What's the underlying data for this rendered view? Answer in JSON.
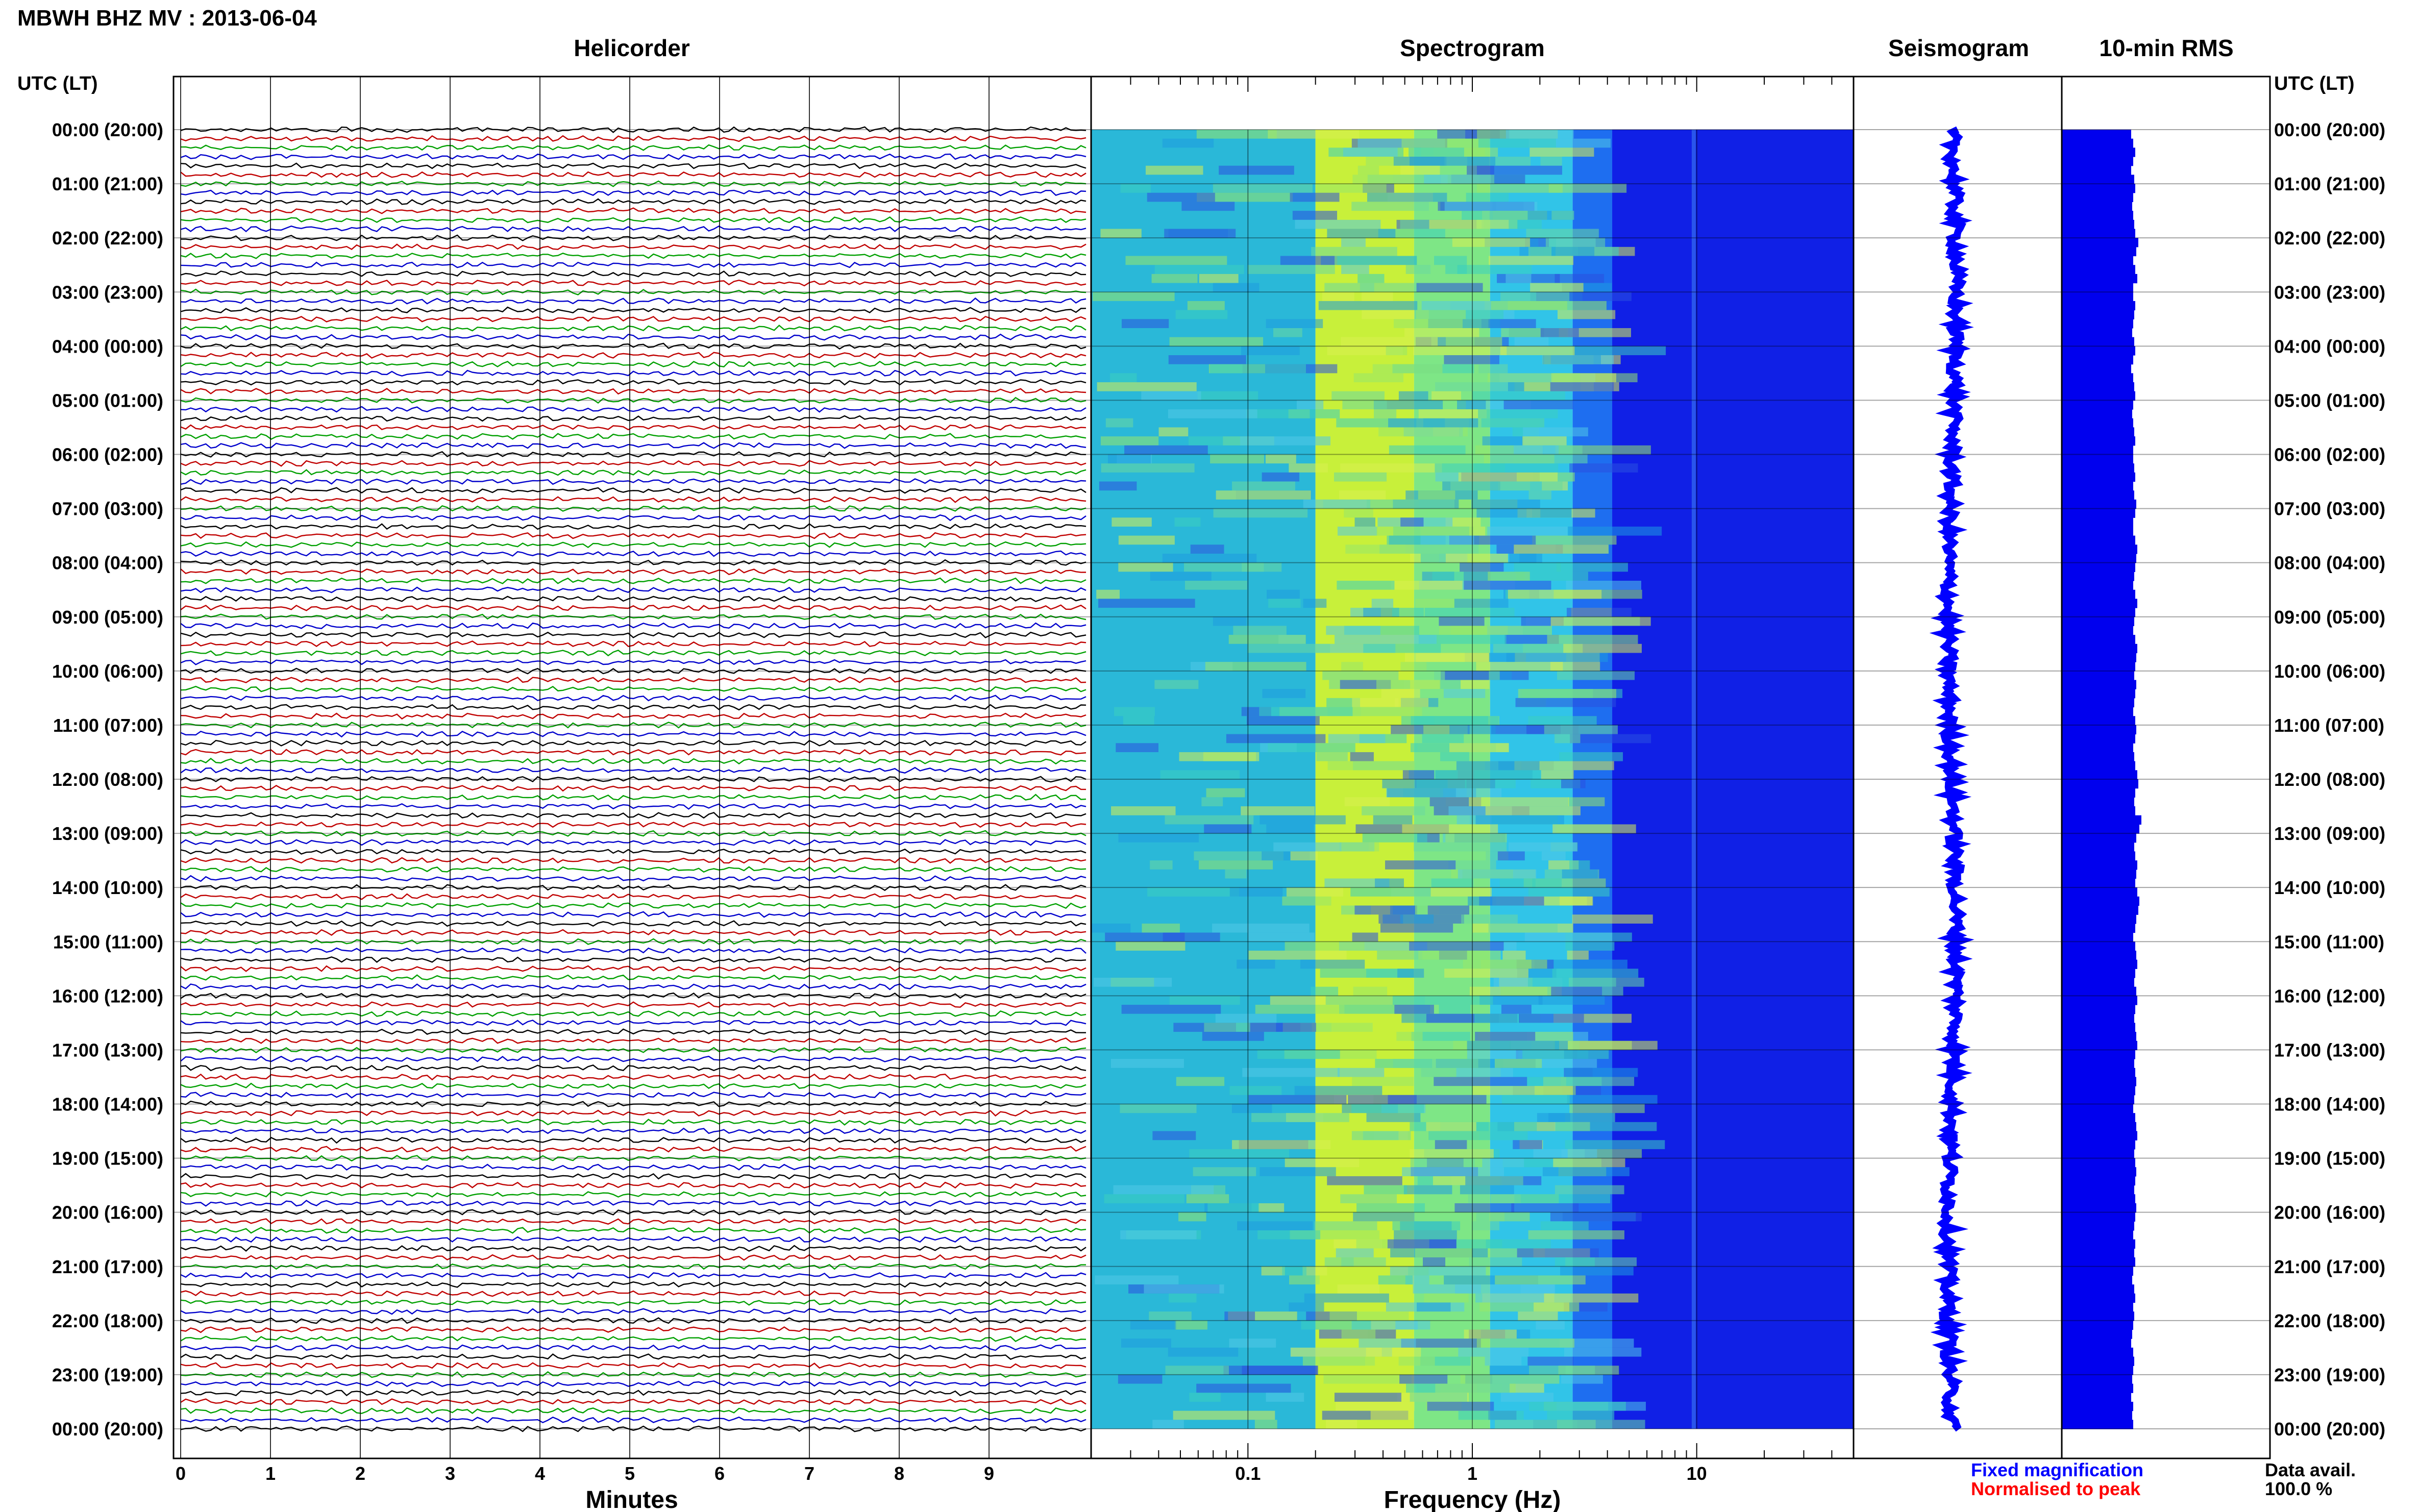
{
  "header": {
    "title": "MBWH BHZ MV : 2013-06-04"
  },
  "panels": {
    "helicorder": "Helicorder",
    "spectrogram": "Spectrogram",
    "seismogram": "Seismogram",
    "rms": "10-min RMS"
  },
  "axis": {
    "left_label": "UTC (LT)",
    "right_label": "UTC (LT)",
    "minutes_label": "Minutes",
    "frequency_label": "Frequency (Hz)"
  },
  "legend": {
    "fixed": "Fixed magnification",
    "normalised": "Normalised to peak",
    "fixed_color": "#0000ff",
    "normalised_color": "#ff0000"
  },
  "data_avail": {
    "label": "Data avail.",
    "value": "100.0 %"
  },
  "chart_data": {
    "type": "heatmap",
    "title": "MBWH BHZ MV : 2013-06-04",
    "time_labels": [
      "00:00 (20:00)",
      "01:00 (21:00)",
      "02:00 (22:00)",
      "03:00 (23:00)",
      "04:00 (00:00)",
      "05:00 (01:00)",
      "06:00 (02:00)",
      "07:00 (03:00)",
      "08:00 (04:00)",
      "09:00 (05:00)",
      "10:00 (06:00)",
      "11:00 (07:00)",
      "12:00 (08:00)",
      "13:00 (09:00)",
      "14:00 (10:00)",
      "15:00 (11:00)",
      "16:00 (12:00)",
      "17:00 (13:00)",
      "18:00 (14:00)",
      "19:00 (15:00)",
      "20:00 (16:00)",
      "21:00 (17:00)",
      "22:00 (18:00)",
      "23:00 (19:00)",
      "00:00 (20:00)"
    ],
    "helicorder": {
      "xlabel": "Minutes",
      "x_ticks": [
        "0",
        "1",
        "2",
        "3",
        "4",
        "5",
        "6",
        "7",
        "8",
        "9"
      ],
      "xlim": [
        0,
        10
      ],
      "trace_colors": [
        "#000000",
        "#c00000",
        "#00a000",
        "#0000cc"
      ],
      "traces_per_hour": 6
    },
    "spectrogram": {
      "xlabel": "Frequency (Hz)",
      "x_scale": "log",
      "xlim": [
        0.02,
        50
      ],
      "x_ticks": [
        "0.1",
        "1",
        "10"
      ]
    },
    "rms_amplitude": [
      0.68,
      0.7,
      0.72,
      0.7,
      0.68,
      0.71,
      0.72,
      0.7,
      0.69,
      0.7,
      0.71,
      0.72,
      0.75,
      0.73,
      0.7,
      0.72,
      0.74,
      0.7,
      0.7,
      0.72,
      0.71,
      0.7,
      0.69,
      0.71,
      0.72,
      0.7,
      0.68,
      0.7,
      0.71,
      0.72,
      0.7,
      0.69,
      0.7,
      0.71,
      0.72,
      0.7,
      0.7,
      0.71,
      0.72,
      0.7,
      0.71,
      0.73,
      0.72,
      0.7,
      0.7,
      0.72,
      0.74,
      0.73,
      0.72,
      0.71,
      0.7,
      0.72,
      0.74,
      0.72,
      0.71,
      0.7,
      0.72,
      0.74,
      0.73,
      0.72,
      0.71,
      0.73,
      0.72,
      0.71,
      0.7,
      0.72,
      0.73,
      0.72,
      0.7,
      0.71,
      0.72,
      0.74,
      0.75,
      0.72,
      0.71,
      0.72,
      0.78,
      0.76,
      0.73,
      0.71,
      0.72,
      0.74,
      0.73,
      0.72,
      0.74,
      0.76,
      0.75,
      0.73,
      0.72,
      0.7,
      0.72,
      0.73,
      0.74,
      0.72,
      0.71,
      0.73,
      0.74,
      0.72,
      0.71,
      0.72,
      0.73,
      0.74,
      0.72,
      0.71,
      0.72,
      0.73,
      0.72,
      0.71,
      0.7,
      0.72,
      0.73,
      0.74,
      0.72,
      0.71,
      0.72,
      0.73,
      0.72,
      0.71,
      0.72,
      0.73,
      0.72,
      0.71,
      0.7,
      0.72,
      0.71,
      0.72,
      0.7,
      0.69,
      0.71,
      0.72,
      0.7,
      0.71,
      0.7,
      0.69,
      0.68,
      0.7,
      0.71,
      0.7,
      0.69,
      0.7,
      0.68,
      0.7,
      0.69,
      0.7
    ]
  }
}
